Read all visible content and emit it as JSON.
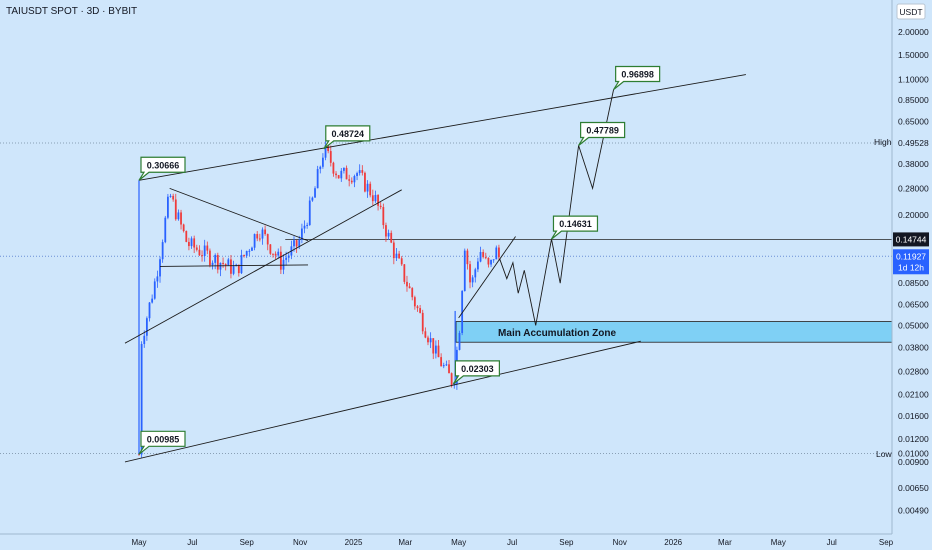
{
  "title": "TAIUSDT SPOT · 3D · BYBIT",
  "currency": "USDT",
  "colors": {
    "bg": "#cfe6fb",
    "up": "#2962ff",
    "down": "#ef3b3b",
    "zone": "#7fd0f5",
    "label_border": "#2e7d32"
  },
  "y_ticks": [
    "2.00000",
    "1.50000",
    "1.10000",
    "0.85000",
    "0.65000",
    "0.49528",
    "0.38000",
    "0.28000",
    "0.20000",
    "0.14744",
    "0.11927",
    "0.08500",
    "0.06500",
    "0.05000",
    "0.03800",
    "0.02800",
    "0.02100",
    "0.01600",
    "0.01200",
    "0.01000",
    "0.00900",
    "0.00650",
    "0.00490"
  ],
  "x_ticks": [
    "May",
    "Jul",
    "Sep",
    "Nov",
    "2025",
    "Mar",
    "May",
    "Jul",
    "Sep",
    "Nov",
    "2026",
    "Mar",
    "May",
    "Jul",
    "Sep"
  ],
  "side_labels": {
    "high": "High",
    "low": "Low"
  },
  "badges": {
    "current_price": "0.14744",
    "last_price": "0.11927",
    "countdown": "1d 12h"
  },
  "callouts": [
    "0.96898",
    "0.48724",
    "0.30666",
    "0.47789",
    "0.14631",
    "0.02303",
    "0.00985"
  ],
  "zone_label": "Main Accumulation Zone",
  "chart_data": {
    "type": "candlestick",
    "title": "TAIUSDT SPOT · 3D · BYBIT",
    "y_scale": "log",
    "ylim": [
      0.0042,
      2.3
    ],
    "high": 0.49528,
    "low": 0.01,
    "current_price": 0.14744,
    "last_price": 0.11927,
    "price_path": [
      [
        "2024-05-01",
        0.0099
      ],
      [
        "2024-05-03",
        0.04
      ],
      [
        "2024-05-20",
        0.09
      ],
      [
        "2024-06-05",
        0.26
      ],
      [
        "2024-06-25",
        0.14
      ],
      [
        "2024-07-20",
        0.12
      ],
      [
        "2024-08-20",
        0.1
      ],
      [
        "2024-09-15",
        0.17
      ],
      [
        "2024-10-10",
        0.11
      ],
      [
        "2024-10-30",
        0.14
      ],
      [
        "2024-11-15",
        0.24
      ],
      [
        "2024-11-28",
        0.46
      ],
      [
        "2024-12-15",
        0.33
      ],
      [
        "2025-01-05",
        0.34
      ],
      [
        "2025-01-25",
        0.25
      ],
      [
        "2025-02-15",
        0.13
      ],
      [
        "2025-03-10",
        0.07
      ],
      [
        "2025-04-05",
        0.035
      ],
      [
        "2025-04-25",
        0.024
      ],
      [
        "2025-05-02",
        0.05
      ],
      [
        "2025-05-08",
        0.14
      ],
      [
        "2025-05-15",
        0.08
      ],
      [
        "2025-05-25",
        0.13
      ],
      [
        "2025-06-05",
        0.1
      ],
      [
        "2025-06-12",
        0.13
      ],
      [
        "2025-06-17",
        0.115
      ]
    ],
    "projection": [
      [
        "2025-06-17",
        0.115
      ],
      [
        "2025-06-25",
        0.09
      ],
      [
        "2025-07-02",
        0.11
      ],
      [
        "2025-07-08",
        0.075
      ],
      [
        "2025-07-15",
        0.1
      ],
      [
        "2025-07-28",
        0.05
      ],
      [
        "2025-08-15",
        0.148
      ],
      [
        "2025-08-25",
        0.085
      ],
      [
        "2025-09-15",
        0.48
      ],
      [
        "2025-10-01",
        0.28
      ],
      [
        "2025-10-25",
        0.97
      ]
    ],
    "trendlines": [
      {
        "name": "upper channel",
        "points": [
          [
            "2024-05-01",
            0.31
          ],
          [
            "2026-03-25",
            1.17
          ]
        ]
      },
      {
        "name": "lower channel",
        "points": [
          [
            "2024-04-15",
            0.009
          ],
          [
            "2025-11-25",
            0.041
          ]
        ]
      },
      {
        "name": "inner support",
        "points": [
          [
            "2024-04-15",
            0.04
          ],
          [
            "2025-02-25",
            0.275
          ]
        ]
      },
      {
        "name": "triangle upper",
        "points": [
          [
            "2024-06-05",
            0.28
          ],
          [
            "2024-11-10",
            0.145
          ]
        ]
      },
      {
        "name": "triangle lower",
        "points": [
          [
            "2024-05-25",
            0.105
          ],
          [
            "2024-11-10",
            0.107
          ]
        ]
      },
      {
        "name": "wedge lower",
        "points": [
          [
            "2025-05-01",
            0.055
          ],
          [
            "2025-07-05",
            0.153
          ]
        ]
      }
    ],
    "resistance_level": 0.14744,
    "accumulation_zone": [
      0.0405,
      0.0525
    ],
    "callouts": [
      {
        "text": "0.96898",
        "x": "2025-10-25",
        "y": 0.97
      },
      {
        "text": "0.48724",
        "x": "2024-11-28",
        "y": 0.46
      },
      {
        "text": "0.30666",
        "x": "2024-05-01",
        "y": 0.31
      },
      {
        "text": "0.47789",
        "x": "2025-09-15",
        "y": 0.48
      },
      {
        "text": "0.14631",
        "x": "2025-08-15",
        "y": 0.148
      },
      {
        "text": "0.02303",
        "x": "2025-04-25",
        "y": 0.024
      },
      {
        "text": "0.00985",
        "x": "2024-05-01",
        "y": 0.0099
      }
    ]
  }
}
